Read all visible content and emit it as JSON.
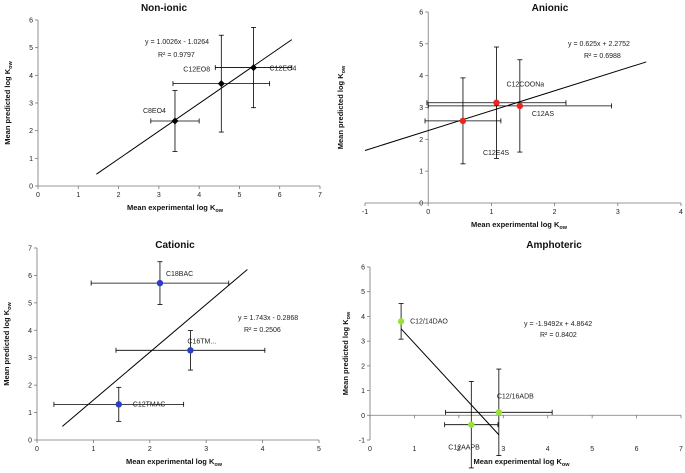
{
  "chart_data": [
    {
      "type": "scatter",
      "title": "Non-ionic",
      "xlabel": "Mean experimental log K",
      "xlabel_sub": "ow",
      "ylabel": "Mean predicted log K",
      "ylabel_sub": "ow",
      "xlim": [
        0,
        7
      ],
      "ylim": [
        0,
        6
      ],
      "xticks": [
        "0",
        "1",
        "2",
        "3",
        "4",
        "5",
        "6",
        "7"
      ],
      "yticks": [
        "0",
        "1",
        "2",
        "3",
        "4",
        "5",
        "6"
      ],
      "marker_color": "#000000",
      "equation": "y = 1.0026x - 1.0264",
      "r2": "R² = 0.9797",
      "trendline": {
        "x": [
          1.45,
          6.3
        ]
      },
      "points": [
        {
          "label": "C8EO4",
          "x": 3.4,
          "y": 2.35,
          "xerr": 0.6,
          "yerr": 1.1
        },
        {
          "label": "C12EO8",
          "x": 4.55,
          "y": 3.7,
          "xerr": 1.2,
          "yerr": 1.75
        },
        {
          "label": "C12EO4",
          "x": 5.35,
          "y": 4.28,
          "xerr": 0.95,
          "yerr": 1.45
        }
      ]
    },
    {
      "type": "scatter",
      "title": "Anionic",
      "xlabel": "Mean experimental log K",
      "xlabel_sub": "ow",
      "ylabel": "Mean predicted log K",
      "ylabel_sub": "ow",
      "xlim": [
        -1,
        4
      ],
      "ylim": [
        0,
        6
      ],
      "xticks": [
        "-1",
        "0",
        "1",
        "2",
        "3",
        "4"
      ],
      "yticks": [
        "0",
        "1",
        "2",
        "3",
        "4",
        "5",
        "6"
      ],
      "marker_color": "#e8261f",
      "equation": "y = 0.625x + 2.2752",
      "r2": "R² = 0.6988",
      "trendline": {
        "x": [
          -1,
          3.45
        ]
      },
      "points": [
        {
          "label": "C12E4S",
          "x": 0.55,
          "y": 2.58,
          "xerr": 0.6,
          "yerr": 1.35
        },
        {
          "label": "C12COONa",
          "x": 1.08,
          "y": 3.15,
          "xerr": 1.1,
          "yerr": 1.75
        },
        {
          "label": "C12AS",
          "x": 1.45,
          "y": 3.05,
          "xerr": 1.45,
          "yerr": 1.45
        }
      ]
    },
    {
      "type": "scatter",
      "title": "Cationic",
      "xlabel": "Mean experimental log K",
      "xlabel_sub": "ow",
      "ylabel": "Mean predicted log K",
      "ylabel_sub": "ow",
      "xlim": [
        0,
        5
      ],
      "ylim": [
        0,
        7
      ],
      "xticks": [
        "0",
        "1",
        "2",
        "3",
        "4",
        "5"
      ],
      "yticks": [
        "0",
        "1",
        "2",
        "3",
        "4",
        "5",
        "6",
        "7"
      ],
      "marker_color": "#2b3ec9",
      "equation": "y = 1.743x - 0.2868",
      "r2": "R² = 0.2506",
      "trendline": {
        "x": [
          0.45,
          3.73
        ]
      },
      "points": [
        {
          "label": "C12TMAC",
          "x": 1.45,
          "y": 1.3,
          "xerr": 1.15,
          "yerr": 0.62
        },
        {
          "label": "C16TM...",
          "x": 2.72,
          "y": 3.27,
          "xerr": 1.32,
          "yerr": 0.72
        },
        {
          "label": "C18BAC",
          "x": 2.18,
          "y": 5.72,
          "xerr": 1.22,
          "yerr": 0.78
        }
      ]
    },
    {
      "type": "scatter",
      "title": "Amphoteric",
      "xlabel": "Mean experimental log K",
      "xlabel_sub": "ow",
      "ylabel": "Mean predicted log K",
      "ylabel_sub": "ow",
      "xlim": [
        0,
        7
      ],
      "ylim": [
        -1,
        6
      ],
      "xticks": [
        "0",
        "1",
        "2",
        "3",
        "4",
        "5",
        "6",
        "7"
      ],
      "yticks": [
        "-1",
        "0",
        "1",
        "2",
        "3",
        "4",
        "5",
        "6"
      ],
      "marker_color": "#99e03a",
      "equation": "y = -1.9492x + 4.8642",
      "r2": "R² = 0.8402",
      "trendline": {
        "x": [
          0.7,
          2.9
        ]
      },
      "points": [
        {
          "label": "C12/14DAO",
          "x": 0.7,
          "y": 3.8,
          "xerr": 0.0,
          "yerr": 0.72
        },
        {
          "label": "C12AAPB",
          "x": 2.28,
          "y": -0.38,
          "xerr": 0.6,
          "yerr": 1.75
        },
        {
          "label": "C12/16ADB",
          "x": 2.9,
          "y": 0.12,
          "xerr": 1.2,
          "yerr": 1.75
        }
      ]
    }
  ]
}
